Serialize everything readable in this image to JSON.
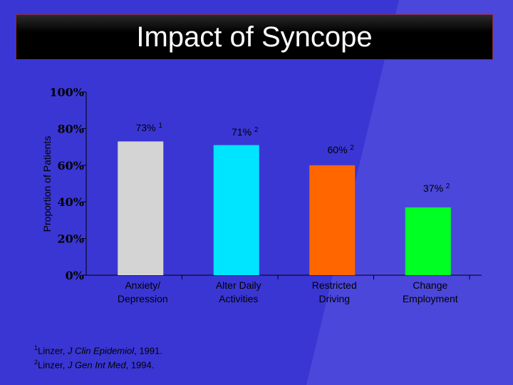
{
  "colors": {
    "background": "#3a36d4",
    "accent_light": "#5a56e0",
    "axis": "#000000"
  },
  "title": "Impact of Syncope",
  "chart_data": {
    "type": "bar",
    "ylabel": "Proportion of Patients",
    "ylim": [
      0,
      100
    ],
    "yticks": [
      {
        "value": 0,
        "label": "0%"
      },
      {
        "value": 20,
        "label": "20%"
      },
      {
        "value": 40,
        "label": "40%"
      },
      {
        "value": 60,
        "label": "60%"
      },
      {
        "value": 80,
        "label": "80%"
      },
      {
        "value": 100,
        "label": "100%"
      }
    ],
    "categories": [
      "Anxiety/ Depression",
      "Alter Daily Activities",
      "Restricted Driving",
      "Change Employment"
    ],
    "category_lines": [
      [
        "Anxiety/",
        "Depression"
      ],
      [
        "Alter Daily",
        "Activities"
      ],
      [
        "Restricted",
        "Driving"
      ],
      [
        "Change",
        "Employment"
      ]
    ],
    "values": [
      73,
      71,
      60,
      37
    ],
    "data_labels": [
      "73%",
      "71%",
      "60%",
      "37%"
    ],
    "label_refs": [
      "1",
      "2",
      "2",
      "2"
    ],
    "bar_colors": [
      "#d4d4d4",
      "#00e5ff",
      "#ff6600",
      "#00ff22"
    ],
    "grid": false,
    "legend": "none"
  },
  "footnotes": [
    {
      "ref": "1",
      "author": "Linzer, ",
      "journal": "J Clin Epidemiol",
      "year": ", 1991."
    },
    {
      "ref": "2",
      "author": "Linzer, ",
      "journal": "J Gen Int Med",
      "year": ", 1994."
    }
  ]
}
